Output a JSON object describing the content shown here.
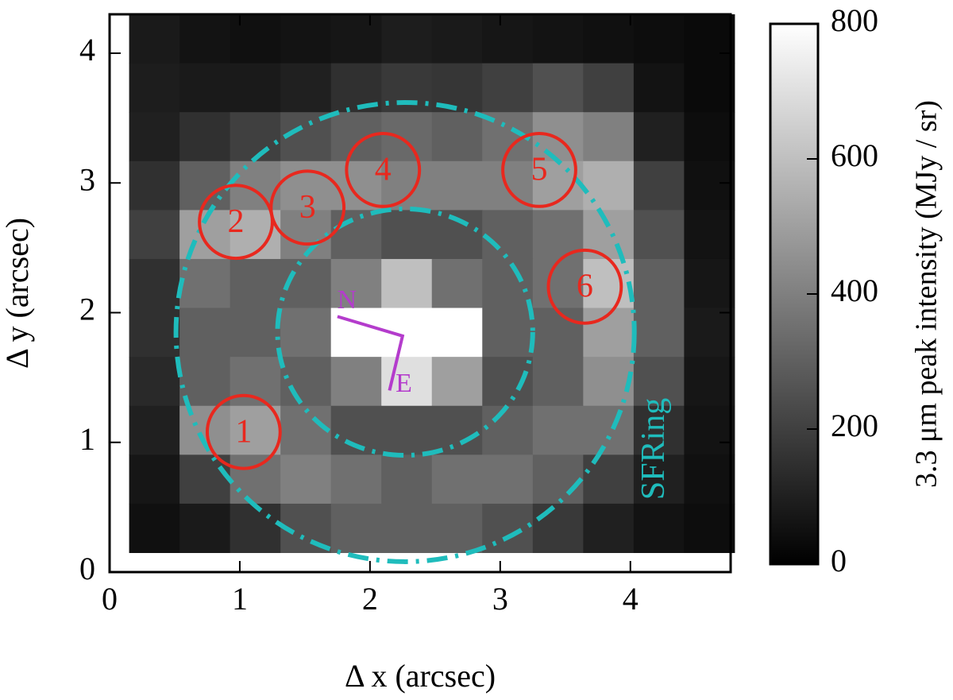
{
  "chart_data": {
    "type": "image",
    "xlabel": "Δ x (arcsec)",
    "ylabel": "Δ y (arcsec)",
    "xlim": [
      0,
      4.77
    ],
    "ylim": [
      0,
      4.3
    ],
    "xticks": [
      0,
      1,
      2,
      3,
      4
    ],
    "yticks": [
      0,
      1,
      2,
      3,
      4
    ],
    "image": {
      "extent": [
        0.15,
        4.8,
        0.15,
        4.3
      ],
      "values": [
        [
          80,
          60,
          50,
          60,
          70,
          90,
          80,
          70,
          60,
          50,
          40,
          30
        ],
        [
          90,
          80,
          80,
          100,
          150,
          180,
          170,
          200,
          250,
          200,
          60,
          30
        ],
        [
          100,
          150,
          200,
          250,
          300,
          330,
          300,
          350,
          450,
          400,
          100,
          40
        ],
        [
          150,
          300,
          400,
          450,
          450,
          400,
          400,
          400,
          500,
          550,
          200,
          50
        ],
        [
          200,
          500,
          550,
          400,
          300,
          250,
          250,
          300,
          350,
          500,
          250,
          60
        ],
        [
          150,
          350,
          300,
          300,
          400,
          600,
          350,
          300,
          350,
          600,
          300,
          70
        ],
        [
          150,
          300,
          300,
          350,
          800,
          800,
          800,
          300,
          300,
          500,
          300,
          80
        ],
        [
          130,
          300,
          350,
          300,
          400,
          700,
          500,
          250,
          300,
          450,
          250,
          70
        ],
        [
          100,
          450,
          500,
          350,
          250,
          250,
          250,
          300,
          350,
          350,
          150,
          60
        ],
        [
          70,
          200,
          350,
          400,
          350,
          300,
          350,
          350,
          300,
          200,
          100,
          50
        ],
        [
          50,
          80,
          150,
          250,
          300,
          300,
          300,
          250,
          180,
          100,
          60,
          40
        ]
      ]
    },
    "colorbar": {
      "label": "3.3 μm peak intensity (MJy / sr)",
      "lim": [
        0,
        800
      ],
      "ticks": [
        0,
        200,
        400,
        600,
        800
      ]
    },
    "regions": [
      {
        "label": "1",
        "x": 1.03,
        "y": 1.08,
        "r": 0.28
      },
      {
        "label": "2",
        "x": 0.97,
        "y": 2.7,
        "r": 0.28
      },
      {
        "label": "3",
        "x": 1.52,
        "y": 2.81,
        "r": 0.28
      },
      {
        "label": "4",
        "x": 2.1,
        "y": 3.1,
        "r": 0.28
      },
      {
        "label": "5",
        "x": 3.3,
        "y": 3.1,
        "r": 0.28
      },
      {
        "label": "6",
        "x": 3.65,
        "y": 2.2,
        "r": 0.28
      }
    ],
    "region_color": "#e8281e",
    "ring": {
      "label": "SFRing",
      "color": "#1fbcbc",
      "x": 2.27,
      "y": 1.85,
      "outer": [
        1.76,
        1.77
      ],
      "inner": [
        0.98,
        0.95
      ],
      "label_x": 4.2,
      "label_y": 0.95
    },
    "compass": {
      "color": "#b43ccc",
      "x": [
        1.75,
        2.25,
        2.15
      ],
      "y": [
        1.97,
        1.82,
        1.4
      ],
      "north": "N",
      "east": "E"
    }
  }
}
